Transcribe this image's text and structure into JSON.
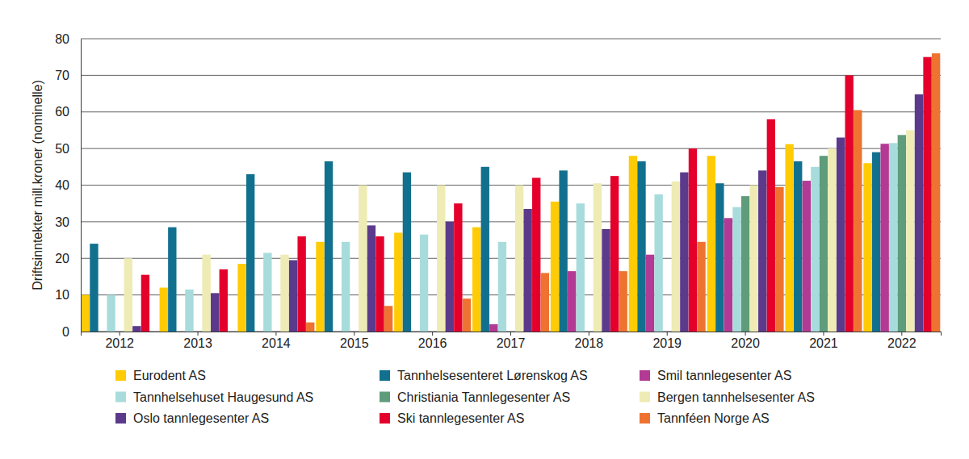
{
  "chart_data": {
    "type": "bar",
    "y_label": "Driftsinntekter mill.kroner (nominelle)",
    "categories": [
      "2012",
      "2013",
      "2014",
      "2015",
      "2016",
      "2017",
      "2018",
      "2019",
      "2020",
      "2021",
      "2022"
    ],
    "series": [
      {
        "name": "Eurodent AS",
        "color": "#ffcb05",
        "values": [
          10,
          12,
          18.5,
          24.5,
          27,
          28.5,
          35.5,
          48,
          48,
          51.2,
          46
        ]
      },
      {
        "name": "Tannhelsesenteret Lørenskog AS",
        "color": "#12708f",
        "values": [
          24,
          28.5,
          43,
          46.5,
          43.5,
          45,
          44,
          46.5,
          40.5,
          46.5,
          49
        ]
      },
      {
        "name": "Smil tannlegesenter AS",
        "color": "#b23a94",
        "values": [
          null,
          null,
          null,
          null,
          null,
          2,
          16.5,
          21,
          31,
          41.2,
          51.3
        ]
      },
      {
        "name": "Tannhelsehuset Haugesund AS",
        "color": "#a8dcdc",
        "values": [
          10,
          11.5,
          21.5,
          24.5,
          26.5,
          24.5,
          35,
          37.5,
          34,
          45,
          51.5
        ]
      },
      {
        "name": "Christiania Tannlegesenter AS",
        "color": "#5e9c7b",
        "values": [
          null,
          null,
          null,
          null,
          null,
          null,
          null,
          null,
          37,
          48,
          53.7
        ]
      },
      {
        "name": "Bergen tannhelsesenter AS",
        "color": "#eeebb4",
        "values": [
          20,
          21,
          21,
          40,
          40,
          40,
          40.5,
          41,
          40,
          50,
          55
        ]
      },
      {
        "name": "Oslo tannlegesenter AS",
        "color": "#5b3a8c",
        "values": [
          1.5,
          10.5,
          19.5,
          29,
          30,
          33.5,
          28,
          43.5,
          44,
          53,
          64.8
        ]
      },
      {
        "name": "Ski tannlegesenter AS",
        "color": "#e4002b",
        "values": [
          15.5,
          17,
          26,
          26,
          35,
          42,
          42.5,
          50,
          58,
          70,
          75
        ]
      },
      {
        "name": "Tannféen Norge AS",
        "color": "#ee7330",
        "values": [
          null,
          null,
          2.5,
          7,
          9,
          16,
          16.5,
          24.5,
          39.5,
          60.5,
          76
        ]
      }
    ],
    "ylim": [
      0,
      80
    ],
    "yticks": [
      0,
      10,
      20,
      30,
      40,
      50,
      60,
      70,
      80
    ],
    "grid": true,
    "legend": "bottom"
  }
}
